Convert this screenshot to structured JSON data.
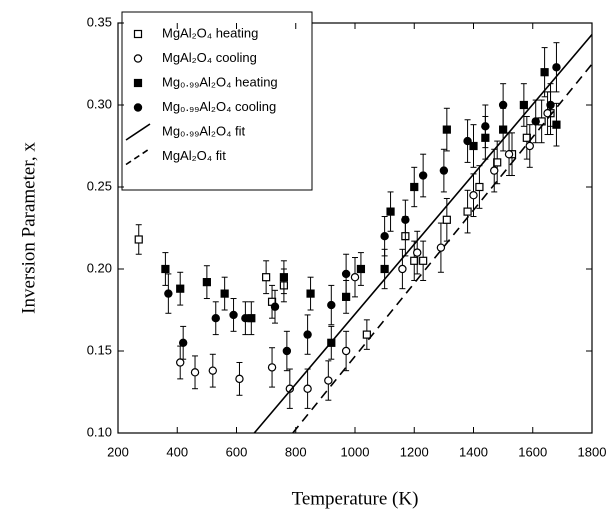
{
  "chart_data": {
    "type": "scatter",
    "x_label": "Temperature (K)",
    "y_label": "Inversion Parameter, x",
    "xlim": [
      200,
      1800
    ],
    "xticks": [
      200,
      400,
      600,
      800,
      1000,
      1200,
      1400,
      1600,
      1800
    ],
    "ylim": [
      0.1,
      0.35
    ],
    "yticks": [
      {
        "value": 0.1,
        "label": "0.10"
      },
      0.15,
      {
        "value": 0.2,
        "label": "0.20"
      },
      0.25,
      {
        "value": 0.3,
        "label": "0.30"
      },
      0.35
    ],
    "series": [
      {
        "name": "MgAl₂O₄ heating",
        "marker": "open-square",
        "color": "#000",
        "x": [
          270,
          700,
          720,
          760,
          1040,
          1170,
          1200,
          1230,
          1310,
          1380,
          1420,
          1480,
          1530,
          1580,
          1630,
          1660
        ],
        "values": [
          0.218,
          0.195,
          0.18,
          0.19,
          0.16,
          0.22,
          0.205,
          0.205,
          0.23,
          0.235,
          0.25,
          0.265,
          0.27,
          0.28,
          0.29,
          0.295
        ],
        "errors": [
          0.009,
          0.01,
          0.01,
          0.01,
          0.009,
          0.012,
          0.012,
          0.012,
          0.013,
          0.013,
          0.013,
          0.013,
          0.013,
          0.013,
          0.013,
          0.013
        ]
      },
      {
        "name": "MgAl₂O₄ cooling",
        "marker": "open-circle",
        "color": "#000",
        "x": [
          410,
          460,
          520,
          610,
          720,
          780,
          840,
          910,
          970,
          1000,
          1160,
          1210,
          1290,
          1400,
          1470,
          1520,
          1590,
          1650
        ],
        "values": [
          0.143,
          0.137,
          0.138,
          0.133,
          0.14,
          0.127,
          0.127,
          0.132,
          0.15,
          0.195,
          0.2,
          0.21,
          0.213,
          0.245,
          0.26,
          0.27,
          0.275,
          0.295
        ],
        "errors": [
          0.01,
          0.01,
          0.01,
          0.01,
          0.012,
          0.012,
          0.012,
          0.012,
          0.012,
          0.012,
          0.012,
          0.013,
          0.015,
          0.013,
          0.013,
          0.013,
          0.013,
          0.013
        ]
      },
      {
        "name": "Mg₀.₉₉Al₂O₄ heating",
        "marker": "filled-square",
        "color": "#000",
        "x": [
          360,
          410,
          500,
          560,
          650,
          760,
          850,
          920,
          970,
          1020,
          1100,
          1120,
          1200,
          1310,
          1400,
          1440,
          1500,
          1570,
          1640,
          1680
        ],
        "values": [
          0.2,
          0.188,
          0.192,
          0.185,
          0.17,
          0.195,
          0.185,
          0.155,
          0.183,
          0.2,
          0.2,
          0.235,
          0.25,
          0.285,
          0.275,
          0.28,
          0.285,
          0.3,
          0.32,
          0.288
        ],
        "errors": [
          0.01,
          0.01,
          0.01,
          0.01,
          0.01,
          0.01,
          0.01,
          0.01,
          0.01,
          0.01,
          0.012,
          0.012,
          0.012,
          0.013,
          0.013,
          0.013,
          0.013,
          0.013,
          0.015,
          0.013
        ]
      },
      {
        "name": "Mg₀.₉₉Al₂O₄ cooling",
        "marker": "filled-circle",
        "color": "#000",
        "x": [
          370,
          420,
          530,
          590,
          630,
          730,
          770,
          840,
          920,
          970,
          1100,
          1170,
          1230,
          1300,
          1380,
          1440,
          1500,
          1610,
          1660,
          1680
        ],
        "values": [
          0.185,
          0.155,
          0.17,
          0.172,
          0.17,
          0.177,
          0.15,
          0.16,
          0.178,
          0.197,
          0.22,
          0.23,
          0.257,
          0.26,
          0.278,
          0.287,
          0.3,
          0.29,
          0.3,
          0.323
        ],
        "errors": [
          0.012,
          0.01,
          0.01,
          0.01,
          0.01,
          0.01,
          0.012,
          0.012,
          0.012,
          0.012,
          0.012,
          0.012,
          0.013,
          0.013,
          0.013,
          0.013,
          0.013,
          0.013,
          0.013,
          0.015
        ]
      },
      {
        "name": "Mg₀.₉₉Al₂O₄ fit",
        "line": "solid",
        "color": "#000",
        "x": [
          660,
          1800
        ],
        "values": [
          0.1,
          0.343
        ]
      },
      {
        "name": "MgAl₂O₄ fit",
        "line": "dashed",
        "color": "#000",
        "x": [
          790,
          1800
        ],
        "values": [
          0.1,
          0.325
        ]
      }
    ]
  }
}
